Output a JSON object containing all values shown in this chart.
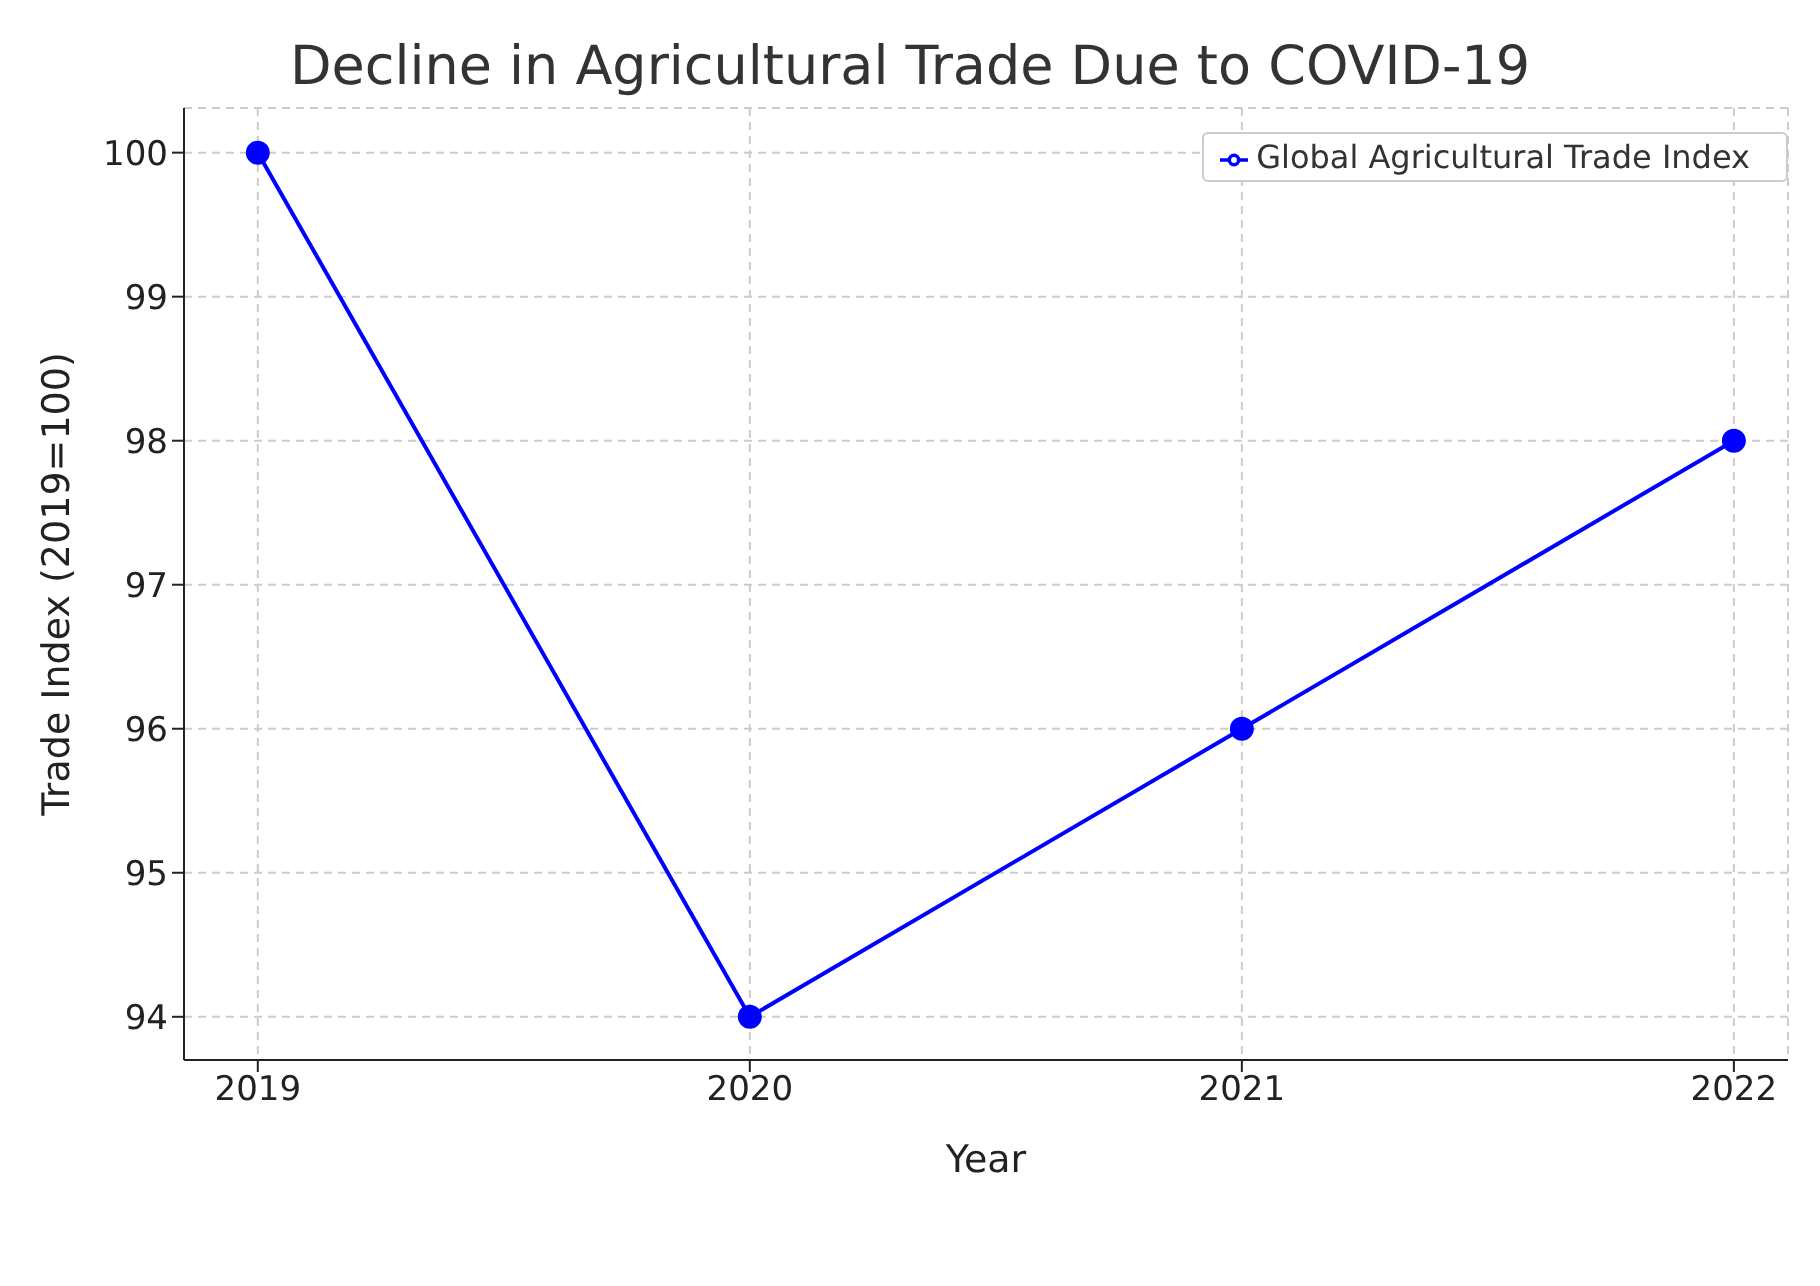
{
  "chart_data": {
    "type": "line",
    "title": "Decline in Agricultural Trade Due to COVID-19",
    "xlabel": "Year",
    "ylabel": "Trade Index (2019=100)",
    "x": [
      2019,
      2020,
      2021,
      2022
    ],
    "series": [
      {
        "name": "Global Agricultural Trade Index",
        "color": "#0000ff",
        "values": [
          100,
          94,
          96,
          98
        ]
      }
    ],
    "xlim": [
      2018.85,
      2022.11
    ],
    "xticks": [
      2019,
      2020,
      2021,
      2022
    ],
    "ylim": [
      93.7,
      100.31
    ],
    "yticks": [
      94,
      95,
      96,
      97,
      98,
      99,
      100
    ],
    "grid": true,
    "legend": "top right",
    "marker": "circle",
    "line_style": "solid"
  }
}
